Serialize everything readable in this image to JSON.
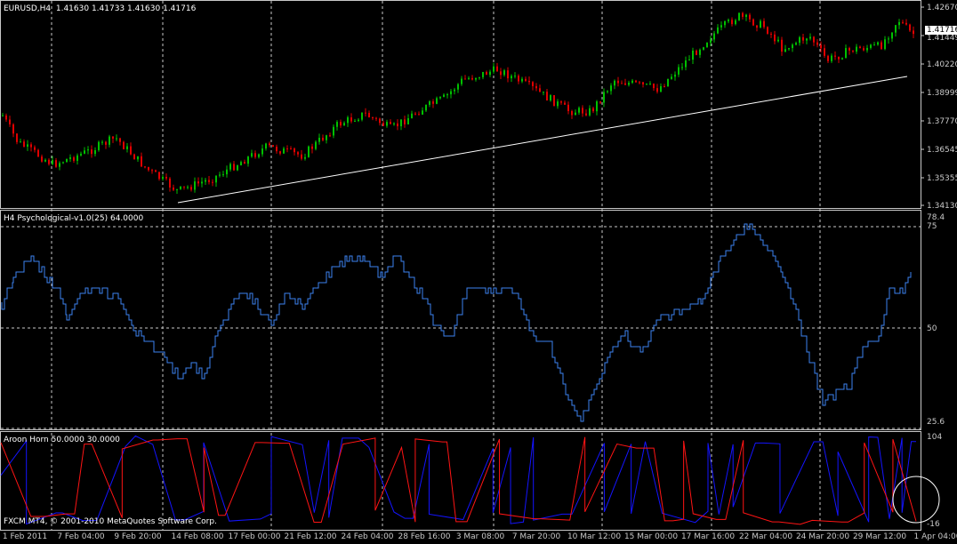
{
  "main_panel": {
    "symbol_label": "EURUSD,H4",
    "ohlc": "1.41630 1.41733 1.41630 1.41716",
    "current_price": "1.41716",
    "price_axis": [
      "1.42670",
      "1.41449",
      "1.40220",
      "1.38999",
      "1.37770",
      "1.36545",
      "1.35355",
      "1.34130"
    ]
  },
  "psy_panel": {
    "label": "H4 Psychological-v1.0(25) 64.0000",
    "axis": [
      "78.4",
      "75",
      "50",
      "25.6"
    ]
  },
  "aroon_panel": {
    "label": "Aroon Horn 50.0000 30.0000",
    "copyright": "FXCM MT4, © 2001-2010 MetaQuotes Software Corp.",
    "axis": [
      "104",
      "-16"
    ]
  },
  "time_axis": [
    "1 Feb 2011",
    "7 Feb 04:00",
    "9 Feb 20:00",
    "14 Feb 08:00",
    "17 Feb 00:00",
    "21 Feb 12:00",
    "24 Feb 04:00",
    "28 Feb 16:00",
    "3 Mar 08:00",
    "7 Mar 20:00",
    "10 Mar 12:00",
    "15 Mar 00:00",
    "17 Mar 16:00",
    "22 Mar 04:00",
    "24 Mar 20:00",
    "29 Mar 12:00",
    "1 Apr 04:00"
  ],
  "colors": {
    "background": "#000000",
    "grid": "#c8c8c8",
    "bull_candle": "#00c000",
    "bear_candle": "#e00000",
    "psy_line": "#3c82f0",
    "aroon_up": "#1414ff",
    "aroon_down": "#ff1414",
    "trendline": "#ffffff"
  }
}
